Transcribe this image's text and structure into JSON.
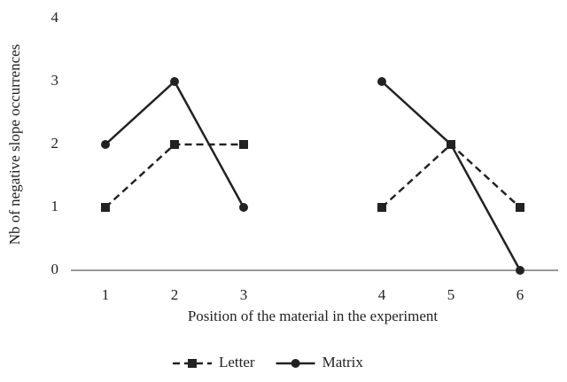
{
  "chart_data": {
    "type": "line",
    "x_label": "Position of the material in the experiment",
    "y_label": "Nb of negative slope occurrences",
    "categories": [
      "1",
      "2",
      "3",
      null,
      "4",
      "5",
      "6"
    ],
    "series": [
      {
        "name": "Letter",
        "color": "#222222",
        "line_style": "dashed",
        "marker": "square",
        "values": [
          1,
          2,
          2,
          null,
          1,
          2,
          1
        ]
      },
      {
        "name": "Matrix",
        "color": "#222222",
        "line_style": "solid",
        "marker": "circle",
        "values": [
          2,
          3,
          1,
          null,
          3,
          2,
          0
        ]
      }
    ],
    "ylim": [
      0,
      4
    ],
    "yticks": [
      0,
      1,
      2,
      3,
      4
    ],
    "grid": false,
    "legend": "bottom"
  }
}
